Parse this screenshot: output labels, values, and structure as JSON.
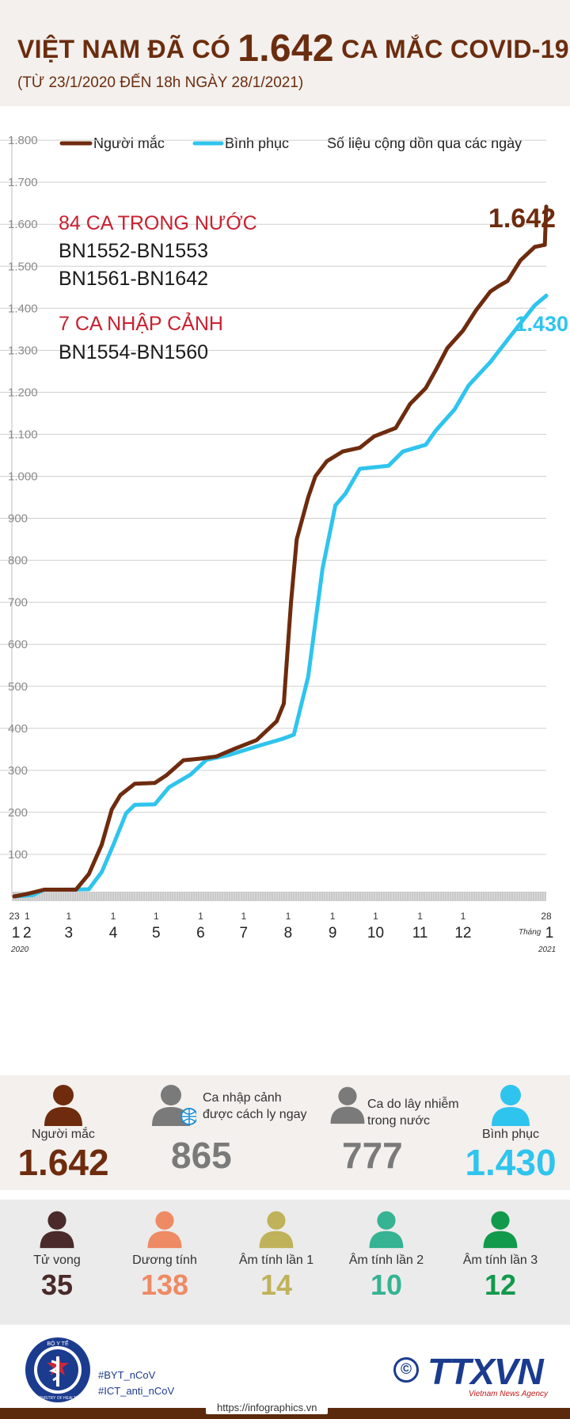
{
  "header": {
    "title_pre": "VIỆT NAM ĐÃ CÓ",
    "title_num": "1.642",
    "title_post": "CA MẮC COVID-19",
    "subtitle": "(TỪ 23/1/2020 ĐẾN 18h NGÀY 28/1/2021)"
  },
  "legend": {
    "cases": "Người mắc",
    "recovered": "Bình phục",
    "note": "Số liệu cộng dồn qua các ngày"
  },
  "annotations": {
    "domestic_title": "84 CA TRONG NƯỚC",
    "domestic_line1": "BN1552-BN1553",
    "domestic_line2": "BN1561-BN1642",
    "imported_title": "7 CA NHẬP CẢNH",
    "imported_line1": "BN1554-BN1560",
    "cases_end": "1.642",
    "recovered_end": "1.430"
  },
  "colors": {
    "cases": "#6e2b0e",
    "recovered": "#2fc4ee",
    "red_text": "#c8202f",
    "grey": "#7a7a7a",
    "dark_red": "#4a2a2a",
    "salmon": "#ee8a64",
    "olive": "#c0b25a",
    "teal": "#35b393",
    "green": "#129a4c"
  },
  "chart_data": {
    "type": "line",
    "title": "",
    "ylim": [
      0,
      1800
    ],
    "yticks": [
      "1.800",
      "1.700",
      "1.600",
      "1.500",
      "1.400",
      "1.300",
      "1.200",
      "1.100",
      "1.000",
      "900",
      "800",
      "700",
      "600",
      "500",
      "400",
      "300",
      "200",
      "100"
    ],
    "ytick_values": [
      1800,
      1700,
      1600,
      1500,
      1400,
      1300,
      1200,
      1100,
      1000,
      900,
      800,
      700,
      600,
      500,
      400,
      300,
      200,
      100
    ],
    "x_day_labels": [
      "23",
      "1",
      "1",
      "1",
      "1",
      "1",
      "1",
      "1",
      "1",
      "1",
      "1",
      "1",
      "28"
    ],
    "x_month_labels": [
      "1",
      "2",
      "3",
      "4",
      "5",
      "6",
      "7",
      "8",
      "9",
      "10",
      "11",
      "12",
      "1"
    ],
    "x_year_start": "2020",
    "x_year_end": "2021",
    "x_month_word": "Tháng",
    "x_dates": [
      "2020-01-23",
      "2020-02-01",
      "2020-03-01",
      "2020-04-01",
      "2020-05-01",
      "2020-06-01",
      "2020-07-01",
      "2020-08-01",
      "2020-09-01",
      "2020-10-01",
      "2020-11-01",
      "2020-12-01",
      "2021-01-01",
      "2021-01-28"
    ],
    "series": [
      {
        "name": "Người mắc",
        "color": "#6e2b0e",
        "points": [
          [
            "2020-01-23",
            0
          ],
          [
            "2020-01-31",
            5
          ],
          [
            "2020-02-13",
            16
          ],
          [
            "2020-03-01",
            16
          ],
          [
            "2020-03-06",
            16
          ],
          [
            "2020-03-15",
            53
          ],
          [
            "2020-03-24",
            123
          ],
          [
            "2020-03-31",
            207
          ],
          [
            "2020-04-06",
            241
          ],
          [
            "2020-04-16",
            268
          ],
          [
            "2020-04-30",
            270
          ],
          [
            "2020-05-08",
            288
          ],
          [
            "2020-05-20",
            324
          ],
          [
            "2020-06-01",
            328
          ],
          [
            "2020-06-12",
            333
          ],
          [
            "2020-06-25",
            352
          ],
          [
            "2020-07-10",
            372
          ],
          [
            "2020-07-24",
            417
          ],
          [
            "2020-07-29",
            459
          ],
          [
            "2020-07-31",
            558
          ],
          [
            "2020-08-03",
            700
          ],
          [
            "2020-08-07",
            850
          ],
          [
            "2020-08-15",
            950
          ],
          [
            "2020-08-20",
            1000
          ],
          [
            "2020-08-28",
            1036
          ],
          [
            "2020-09-08",
            1059
          ],
          [
            "2020-09-20",
            1068
          ],
          [
            "2020-09-30",
            1095
          ],
          [
            "2020-10-15",
            1115
          ],
          [
            "2020-10-25",
            1172
          ],
          [
            "2020-11-05",
            1210
          ],
          [
            "2020-11-12",
            1253
          ],
          [
            "2020-11-20",
            1305
          ],
          [
            "2020-12-01",
            1347
          ],
          [
            "2020-12-10",
            1395
          ],
          [
            "2020-12-20",
            1440
          ],
          [
            "2020-12-25",
            1451
          ],
          [
            "2021-01-01",
            1465
          ],
          [
            "2021-01-10",
            1514
          ],
          [
            "2021-01-20",
            1546
          ],
          [
            "2021-01-27",
            1551
          ],
          [
            "2021-01-28",
            1642
          ]
        ]
      },
      {
        "name": "Bình phục",
        "color": "#2fc4ee",
        "points": [
          [
            "2020-01-23",
            0
          ],
          [
            "2020-02-05",
            3
          ],
          [
            "2020-02-13",
            16
          ],
          [
            "2020-03-01",
            16
          ],
          [
            "2020-03-15",
            17
          ],
          [
            "2020-03-24",
            58
          ],
          [
            "2020-04-01",
            122
          ],
          [
            "2020-04-10",
            198
          ],
          [
            "2020-04-16",
            218
          ],
          [
            "2020-04-30",
            219
          ],
          [
            "2020-05-10",
            260
          ],
          [
            "2020-05-25",
            290
          ],
          [
            "2020-06-05",
            325
          ],
          [
            "2020-06-20",
            336
          ],
          [
            "2020-07-10",
            357
          ],
          [
            "2020-07-28",
            375
          ],
          [
            "2020-08-05",
            385
          ],
          [
            "2020-08-15",
            523
          ],
          [
            "2020-08-25",
            780
          ],
          [
            "2020-09-03",
            931
          ],
          [
            "2020-09-10",
            959
          ],
          [
            "2020-09-20",
            1018
          ],
          [
            "2020-10-10",
            1025
          ],
          [
            "2020-10-20",
            1059
          ],
          [
            "2020-11-05",
            1075
          ],
          [
            "2020-11-12",
            1109
          ],
          [
            "2020-11-25",
            1159
          ],
          [
            "2020-12-05",
            1217
          ],
          [
            "2020-12-20",
            1272
          ],
          [
            "2021-01-01",
            1325
          ],
          [
            "2021-01-10",
            1364
          ],
          [
            "2021-01-20",
            1407
          ],
          [
            "2021-01-28",
            1430
          ]
        ]
      }
    ]
  },
  "stats_row1": [
    {
      "label": "Người mắc",
      "value": "1.642",
      "color": "#6e2b0e",
      "icon": "person-icon"
    },
    {
      "label": "Ca nhập cảnh\nđược cách ly ngay",
      "value": "865",
      "color": "#7a7a7a",
      "icon": "person-globe-icon"
    },
    {
      "label": "Ca do lây nhiễm\ntrong nước",
      "value": "777",
      "color": "#7a7a7a",
      "icon": "person-icon"
    },
    {
      "label": "Bình phục",
      "value": "1.430",
      "color": "#2fc4ee",
      "icon": "person-icon"
    }
  ],
  "stats_row2": [
    {
      "label": "Tử vong",
      "value": "35",
      "color": "#4a2a2a",
      "icon": "person-icon"
    },
    {
      "label": "Dương tính",
      "value": "138",
      "color": "#ee8a64",
      "icon": "person-icon"
    },
    {
      "label": "Âm tính lần 1",
      "value": "14",
      "color": "#c0b25a",
      "icon": "person-icon"
    },
    {
      "label": "Âm tính lần 2",
      "value": "10",
      "color": "#35b393",
      "icon": "person-icon"
    },
    {
      "label": "Âm tính lần 3",
      "value": "12",
      "color": "#129a4c",
      "icon": "person-icon"
    }
  ],
  "footer": {
    "hashtag1": "#BYT_nCoV",
    "hashtag2": "#ICT_anti_nCoV",
    "logo_text_top": "BỘ Y TẾ",
    "logo_text_bottom": "MINISTRY OF HEALTH",
    "copyright": "©",
    "agency": "TTXVN",
    "agency_sub": "Vietnam News Agency",
    "url": "https://infographics.vn"
  }
}
